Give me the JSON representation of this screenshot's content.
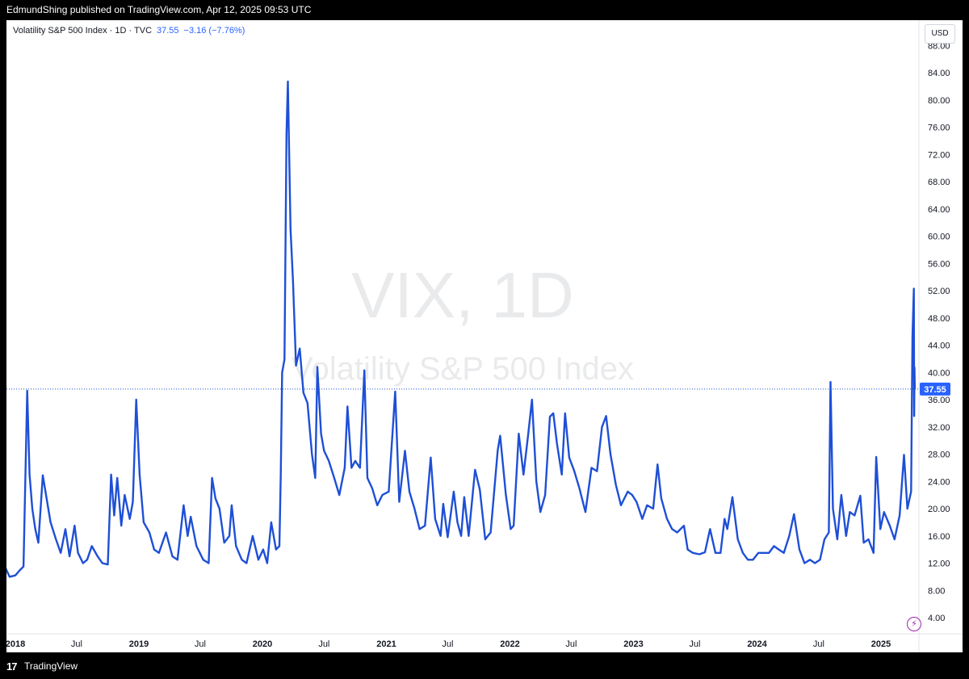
{
  "header": {
    "published_text": "EdmundShing published on TradingView.com, Apr 12, 2025 09:53 UTC"
  },
  "legend": {
    "instrument": "Volatility S&P 500 Index · 1D · TVC",
    "last": "37.55",
    "change": "−3.16 (−7.76%)"
  },
  "currency": "USD",
  "watermark": {
    "symbol": "VIX, 1D",
    "description": "Volatility S&P 500 Index"
  },
  "last_price_label": "37.55",
  "footer": {
    "logo_mark": "17",
    "logo_text": "TradingView"
  },
  "colors": {
    "line": "#1e4fd6",
    "accent": "#2962ff",
    "alert": "#9c27b0"
  },
  "chart_data": {
    "type": "line",
    "title": "Volatility S&P 500 Index · 1D · TVC",
    "ylim": [
      2,
      88
    ],
    "y_ticks": [
      4,
      8,
      12,
      16,
      20,
      24,
      28,
      32,
      36,
      40,
      44,
      48,
      52,
      56,
      60,
      64,
      68,
      72,
      76,
      80,
      84,
      88
    ],
    "x_ticks": [
      {
        "label": "2018",
        "date": "2018-01-01"
      },
      {
        "label": "Jul",
        "date": "2018-07-01"
      },
      {
        "label": "2019",
        "date": "2019-01-01"
      },
      {
        "label": "Jul",
        "date": "2019-07-01"
      },
      {
        "label": "2020",
        "date": "2020-01-01"
      },
      {
        "label": "Jul",
        "date": "2020-07-01"
      },
      {
        "label": "2021",
        "date": "2021-01-01"
      },
      {
        "label": "Jul",
        "date": "2021-07-01"
      },
      {
        "label": "2022",
        "date": "2022-01-01"
      },
      {
        "label": "Jul",
        "date": "2022-07-01"
      },
      {
        "label": "2023",
        "date": "2023-01-01"
      },
      {
        "label": "Jul",
        "date": "2023-07-01"
      },
      {
        "label": "2024",
        "date": "2024-01-01"
      },
      {
        "label": "Jul",
        "date": "2024-07-01"
      },
      {
        "label": "2025",
        "date": "2025-01-01"
      }
    ],
    "last_value": 37.55,
    "series": [
      {
        "points": [
          [
            "2017-11-01",
            13.0
          ],
          [
            "2017-11-15",
            11.0
          ],
          [
            "2017-12-01",
            11.5
          ],
          [
            "2017-12-15",
            10.0
          ],
          [
            "2018-01-01",
            10.2
          ],
          [
            "2018-01-15",
            11.0
          ],
          [
            "2018-01-25",
            11.5
          ],
          [
            "2018-02-05",
            37.3
          ],
          [
            "2018-02-12",
            25.0
          ],
          [
            "2018-02-20",
            20.0
          ],
          [
            "2018-03-01",
            17.0
          ],
          [
            "2018-03-10",
            15.0
          ],
          [
            "2018-03-23",
            24.9
          ],
          [
            "2018-04-05",
            21.0
          ],
          [
            "2018-04-15",
            18.0
          ],
          [
            "2018-05-01",
            15.5
          ],
          [
            "2018-05-15",
            13.5
          ],
          [
            "2018-05-29",
            17.0
          ],
          [
            "2018-06-10",
            13.0
          ],
          [
            "2018-06-25",
            17.5
          ],
          [
            "2018-07-05",
            13.5
          ],
          [
            "2018-07-20",
            12.0
          ],
          [
            "2018-08-01",
            12.5
          ],
          [
            "2018-08-15",
            14.5
          ],
          [
            "2018-09-01",
            13.0
          ],
          [
            "2018-09-15",
            12.0
          ],
          [
            "2018-10-01",
            11.8
          ],
          [
            "2018-10-11",
            25.0
          ],
          [
            "2018-10-20",
            19.0
          ],
          [
            "2018-10-29",
            24.5
          ],
          [
            "2018-11-10",
            17.5
          ],
          [
            "2018-11-20",
            22.0
          ],
          [
            "2018-12-05",
            18.5
          ],
          [
            "2018-12-14",
            21.0
          ],
          [
            "2018-12-24",
            36.0
          ],
          [
            "2019-01-03",
            25.0
          ],
          [
            "2019-01-15",
            18.0
          ],
          [
            "2019-02-01",
            16.5
          ],
          [
            "2019-02-15",
            14.0
          ],
          [
            "2019-03-01",
            13.5
          ],
          [
            "2019-03-22",
            16.5
          ],
          [
            "2019-04-10",
            13.0
          ],
          [
            "2019-04-25",
            12.5
          ],
          [
            "2019-05-13",
            20.5
          ],
          [
            "2019-05-25",
            16.0
          ],
          [
            "2019-06-03",
            18.8
          ],
          [
            "2019-06-20",
            14.5
          ],
          [
            "2019-07-10",
            12.5
          ],
          [
            "2019-07-26",
            12.0
          ],
          [
            "2019-08-05",
            24.5
          ],
          [
            "2019-08-15",
            21.5
          ],
          [
            "2019-08-27",
            20.0
          ],
          [
            "2019-09-10",
            15.0
          ],
          [
            "2019-09-25",
            16.0
          ],
          [
            "2019-10-02",
            20.5
          ],
          [
            "2019-10-15",
            14.5
          ],
          [
            "2019-11-01",
            12.5
          ],
          [
            "2019-11-15",
            12.0
          ],
          [
            "2019-12-03",
            16.0
          ],
          [
            "2019-12-20",
            12.5
          ],
          [
            "2020-01-03",
            14.0
          ],
          [
            "2020-01-15",
            12.0
          ],
          [
            "2020-01-27",
            18.0
          ],
          [
            "2020-02-10",
            14.0
          ],
          [
            "2020-02-20",
            14.5
          ],
          [
            "2020-02-24",
            25.0
          ],
          [
            "2020-02-28",
            40.0
          ],
          [
            "2020-03-06",
            41.9
          ],
          [
            "2020-03-12",
            75.0
          ],
          [
            "2020-03-16",
            82.7
          ],
          [
            "2020-03-24",
            61.0
          ],
          [
            "2020-03-31",
            53.5
          ],
          [
            "2020-04-09",
            41.0
          ],
          [
            "2020-04-20",
            43.5
          ],
          [
            "2020-05-01",
            37.0
          ],
          [
            "2020-05-13",
            35.5
          ],
          [
            "2020-05-26",
            28.0
          ],
          [
            "2020-06-05",
            24.5
          ],
          [
            "2020-06-11",
            40.8
          ],
          [
            "2020-06-22",
            31.0
          ],
          [
            "2020-07-01",
            28.5
          ],
          [
            "2020-07-15",
            27.0
          ],
          [
            "2020-07-31",
            24.5
          ],
          [
            "2020-08-15",
            22.0
          ],
          [
            "2020-08-31",
            26.0
          ],
          [
            "2020-09-08",
            35.0
          ],
          [
            "2020-09-20",
            26.0
          ],
          [
            "2020-10-01",
            27.0
          ],
          [
            "2020-10-15",
            26.0
          ],
          [
            "2020-10-28",
            40.3
          ],
          [
            "2020-11-06",
            24.5
          ],
          [
            "2020-11-20",
            23.0
          ],
          [
            "2020-12-05",
            20.5
          ],
          [
            "2020-12-20",
            22.0
          ],
          [
            "2021-01-08",
            22.5
          ],
          [
            "2021-01-27",
            37.2
          ],
          [
            "2021-02-08",
            21.0
          ],
          [
            "2021-02-25",
            28.5
          ],
          [
            "2021-03-10",
            22.5
          ],
          [
            "2021-03-25",
            20.0
          ],
          [
            "2021-04-09",
            17.0
          ],
          [
            "2021-04-25",
            17.5
          ],
          [
            "2021-05-12",
            27.5
          ],
          [
            "2021-05-25",
            18.5
          ],
          [
            "2021-06-10",
            16.0
          ],
          [
            "2021-06-18",
            20.7
          ],
          [
            "2021-07-01",
            15.8
          ],
          [
            "2021-07-19",
            22.5
          ],
          [
            "2021-07-30",
            18.0
          ],
          [
            "2021-08-10",
            16.0
          ],
          [
            "2021-08-19",
            21.7
          ],
          [
            "2021-09-01",
            16.0
          ],
          [
            "2021-09-20",
            25.7
          ],
          [
            "2021-10-04",
            22.8
          ],
          [
            "2021-10-20",
            15.5
          ],
          [
            "2021-11-05",
            16.5
          ],
          [
            "2021-11-26",
            28.6
          ],
          [
            "2021-12-03",
            30.7
          ],
          [
            "2021-12-20",
            22.0
          ],
          [
            "2022-01-03",
            17.0
          ],
          [
            "2022-01-12",
            17.5
          ],
          [
            "2022-01-27",
            31.0
          ],
          [
            "2022-02-10",
            25.0
          ],
          [
            "2022-02-24",
            31.0
          ],
          [
            "2022-03-07",
            36.0
          ],
          [
            "2022-03-20",
            24.0
          ],
          [
            "2022-04-01",
            19.5
          ],
          [
            "2022-04-15",
            22.0
          ],
          [
            "2022-04-29",
            33.5
          ],
          [
            "2022-05-09",
            34.0
          ],
          [
            "2022-05-20",
            29.5
          ],
          [
            "2022-06-03",
            25.0
          ],
          [
            "2022-06-13",
            34.0
          ],
          [
            "2022-06-25",
            27.5
          ],
          [
            "2022-07-10",
            25.5
          ],
          [
            "2022-07-25",
            23.0
          ],
          [
            "2022-08-12",
            19.5
          ],
          [
            "2022-08-30",
            26.0
          ],
          [
            "2022-09-15",
            25.5
          ],
          [
            "2022-09-30",
            32.0
          ],
          [
            "2022-10-12",
            33.6
          ],
          [
            "2022-10-25",
            28.0
          ],
          [
            "2022-11-10",
            23.5
          ],
          [
            "2022-11-25",
            20.5
          ],
          [
            "2022-12-15",
            22.5
          ],
          [
            "2022-12-28",
            22.0
          ],
          [
            "2023-01-10",
            21.0
          ],
          [
            "2023-01-27",
            18.5
          ],
          [
            "2023-02-10",
            20.5
          ],
          [
            "2023-02-28",
            20.0
          ],
          [
            "2023-03-13",
            26.5
          ],
          [
            "2023-03-24",
            21.5
          ],
          [
            "2023-04-10",
            18.5
          ],
          [
            "2023-04-25",
            17.0
          ],
          [
            "2023-05-10",
            16.5
          ],
          [
            "2023-05-30",
            17.5
          ],
          [
            "2023-06-10",
            14.0
          ],
          [
            "2023-06-25",
            13.5
          ],
          [
            "2023-07-15",
            13.3
          ],
          [
            "2023-07-31",
            13.6
          ],
          [
            "2023-08-15",
            17.0
          ],
          [
            "2023-08-31",
            13.5
          ],
          [
            "2023-09-15",
            13.5
          ],
          [
            "2023-09-27",
            18.5
          ],
          [
            "2023-10-05",
            17.0
          ],
          [
            "2023-10-20",
            21.7
          ],
          [
            "2023-11-05",
            15.5
          ],
          [
            "2023-11-20",
            13.5
          ],
          [
            "2023-12-05",
            12.5
          ],
          [
            "2023-12-20",
            12.5
          ],
          [
            "2024-01-05",
            13.5
          ],
          [
            "2024-01-20",
            13.5
          ],
          [
            "2024-02-05",
            13.5
          ],
          [
            "2024-02-20",
            14.5
          ],
          [
            "2024-03-05",
            14.0
          ],
          [
            "2024-03-20",
            13.5
          ],
          [
            "2024-04-05",
            16.0
          ],
          [
            "2024-04-19",
            19.2
          ],
          [
            "2024-05-05",
            14.0
          ],
          [
            "2024-05-20",
            12.0
          ],
          [
            "2024-06-05",
            12.5
          ],
          [
            "2024-06-20",
            12.0
          ],
          [
            "2024-07-05",
            12.5
          ],
          [
            "2024-07-18",
            15.5
          ],
          [
            "2024-07-31",
            16.5
          ],
          [
            "2024-08-05",
            38.6
          ],
          [
            "2024-08-12",
            20.0
          ],
          [
            "2024-08-25",
            15.5
          ],
          [
            "2024-09-06",
            22.0
          ],
          [
            "2024-09-20",
            16.0
          ],
          [
            "2024-10-01",
            19.5
          ],
          [
            "2024-10-15",
            19.0
          ],
          [
            "2024-11-01",
            21.9
          ],
          [
            "2024-11-11",
            15.0
          ],
          [
            "2024-11-25",
            15.5
          ],
          [
            "2024-12-10",
            13.5
          ],
          [
            "2024-12-18",
            27.6
          ],
          [
            "2024-12-30",
            17.0
          ],
          [
            "2025-01-10",
            19.5
          ],
          [
            "2025-01-27",
            17.5
          ],
          [
            "2025-02-10",
            15.5
          ],
          [
            "2025-02-25",
            19.0
          ],
          [
            "2025-03-10",
            27.9
          ],
          [
            "2025-03-20",
            20.0
          ],
          [
            "2025-03-31",
            22.5
          ],
          [
            "2025-04-04",
            45.3
          ],
          [
            "2025-04-08",
            52.3
          ],
          [
            "2025-04-09",
            33.6
          ],
          [
            "2025-04-10",
            40.7
          ],
          [
            "2025-04-11",
            37.55
          ]
        ]
      }
    ]
  }
}
